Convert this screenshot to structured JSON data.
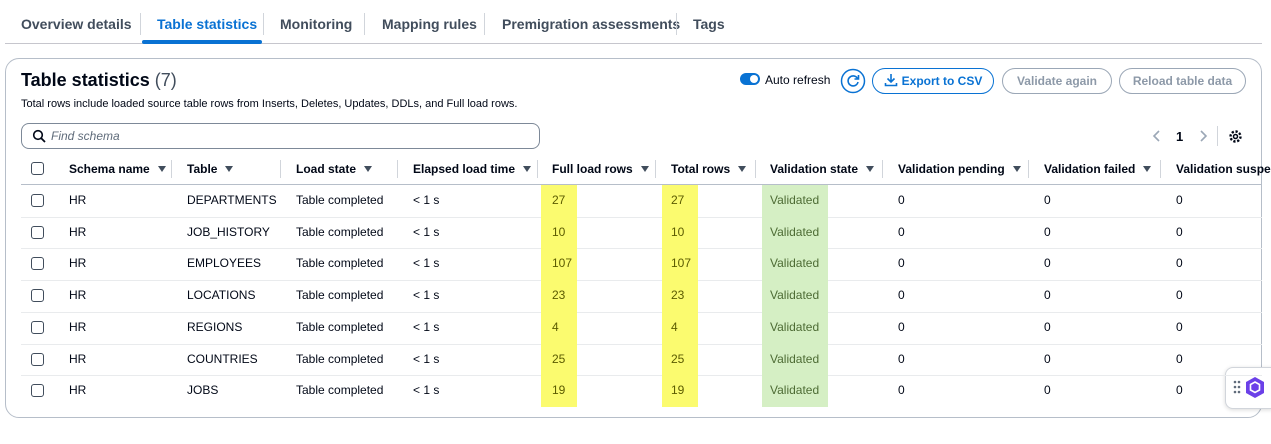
{
  "tabs": {
    "items": [
      "Overview details",
      "Table statistics",
      "Monitoring",
      "Mapping rules",
      "Premigration assessments",
      "Tags"
    ],
    "active": 1
  },
  "panel": {
    "title": "Table statistics",
    "count": "(7)",
    "description": "Total rows include loaded source table rows from Inserts, Deletes, Updates, DDLs, and Full load rows.",
    "auto_refresh": "Auto refresh",
    "export": "Export to CSV",
    "validate": "Validate again",
    "reload": "Reload table data",
    "search_placeholder": "Find schema",
    "page": 1
  },
  "table": {
    "columns": [
      "Schema name",
      "Table",
      "Load state",
      "Elapsed load time",
      "Full load rows",
      "Total rows",
      "Validation state",
      "Validation pending",
      "Validation failed",
      "Validation suspended"
    ],
    "rows": [
      [
        "HR",
        "DEPARTMENTS",
        "Table completed",
        "< 1 s",
        27,
        27,
        "Validated",
        0,
        0,
        0
      ],
      [
        "HR",
        "JOB_HISTORY",
        "Table completed",
        "< 1 s",
        10,
        10,
        "Validated",
        0,
        0,
        0
      ],
      [
        "HR",
        "EMPLOYEES",
        "Table completed",
        "< 1 s",
        107,
        107,
        "Validated",
        0,
        0,
        0
      ],
      [
        "HR",
        "LOCATIONS",
        "Table completed",
        "< 1 s",
        23,
        23,
        "Validated",
        0,
        0,
        0
      ],
      [
        "HR",
        "REGIONS",
        "Table completed",
        "< 1 s",
        4,
        4,
        "Validated",
        0,
        0,
        0
      ],
      [
        "HR",
        "COUNTRIES",
        "Table completed",
        "< 1 s",
        25,
        25,
        "Validated",
        0,
        0,
        0
      ],
      [
        "HR",
        "JOBS",
        "Table completed",
        "< 1 s",
        19,
        19,
        "Validated",
        0,
        0,
        0
      ]
    ]
  }
}
